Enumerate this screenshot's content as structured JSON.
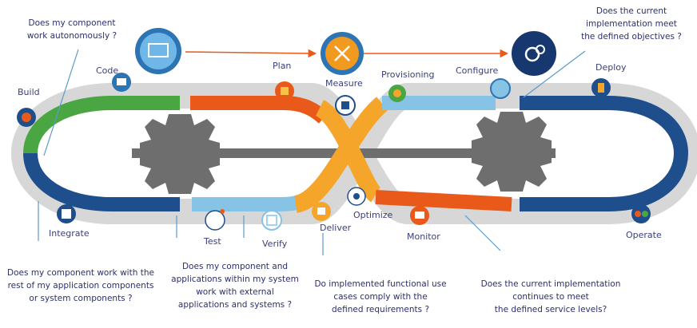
{
  "colors": {
    "green": "#4aa642",
    "navy": "#1f4e8c",
    "orange": "#e8591a",
    "light_blue": "#86c3e4",
    "yellow": "#f4a52a",
    "gear": "#6e6e6e",
    "text": "#2b2f6e"
  },
  "top_flow": [
    {
      "name": "plan-icon",
      "icon": "screen-wrench-icon"
    },
    {
      "name": "measure-icon",
      "icon": "tools-icon"
    },
    {
      "name": "configure-icon",
      "icon": "settings-gear-icon"
    }
  ],
  "stages": {
    "build": "Build",
    "code": "Code",
    "plan": "Plan",
    "measure": "Measure",
    "provisioning": "Provisioning",
    "configure": "Configure",
    "deploy": "Deploy",
    "integrate": "Integrate",
    "test": "Test",
    "verify": "Verify",
    "deliver": "Deliver",
    "optimize": "Optimize",
    "monitor": "Monitor",
    "operate": "Operate"
  },
  "questions": {
    "autonomous": [
      "Does my component",
      "work autonomously ?"
    ],
    "objectives": [
      "Does the current",
      "implementation meet",
      "the defined objectives ?"
    ],
    "integration": [
      "Does my component work with the",
      "rest of my application components",
      "or system components ?"
    ],
    "external": [
      "Does my component and",
      "applications within my system",
      "work with external",
      "applications and systems ?"
    ],
    "functional": [
      "Do implemented functional use",
      "cases comply with the",
      "defined requirements ?"
    ],
    "service": [
      "Does the current implementation",
      "continues to meet",
      "the defined service levels?"
    ]
  }
}
